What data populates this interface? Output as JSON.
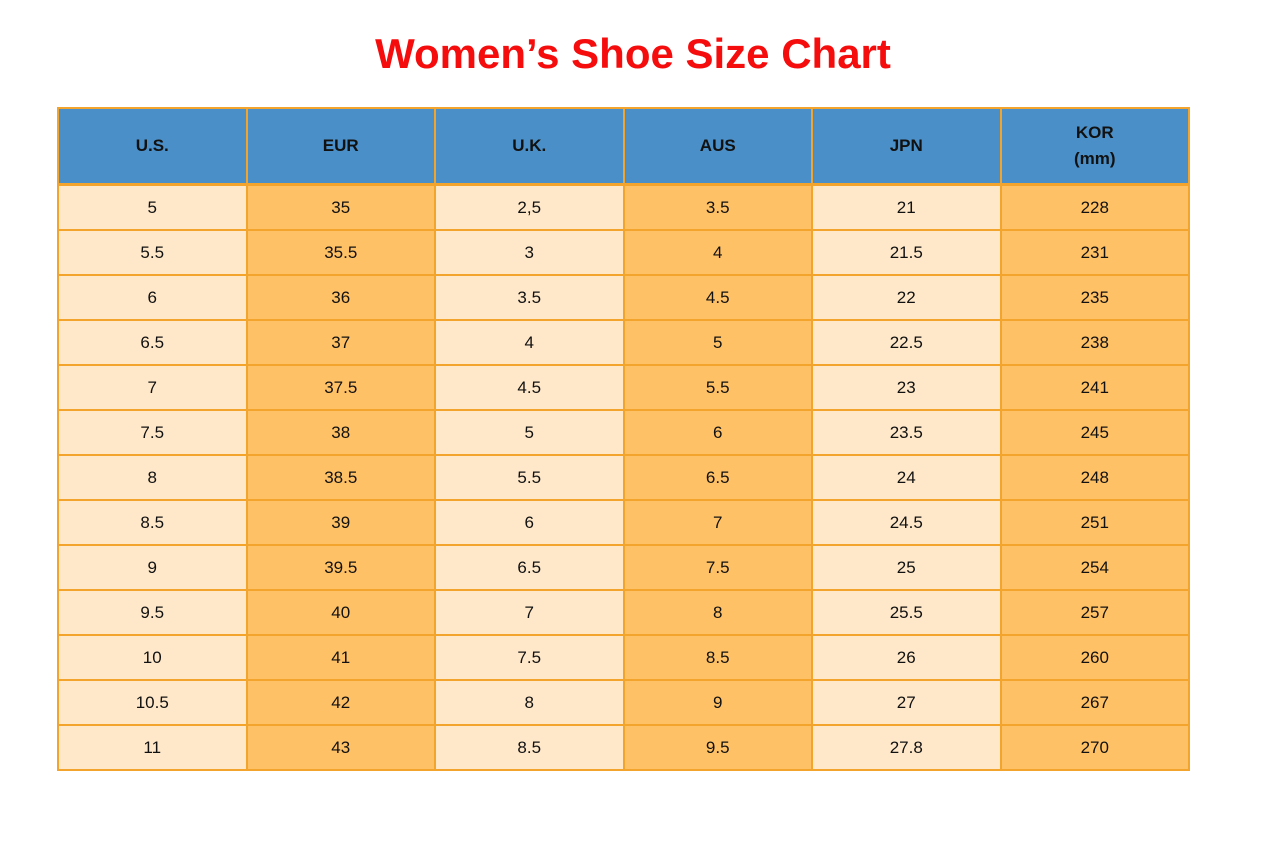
{
  "title": "Women’s Shoe Size Chart",
  "colors": {
    "title_red": "#f50d0d",
    "header_blue": "#4a8fc7",
    "cell_light": "#ffe8c9",
    "cell_orange": "#ffc166",
    "grid_border": "#f2a42c",
    "text": "#111111"
  },
  "table": {
    "headers": [
      {
        "line1": "U.S.",
        "line2": ""
      },
      {
        "line1": "EUR",
        "line2": ""
      },
      {
        "line1": "U.K.",
        "line2": ""
      },
      {
        "line1": "AUS",
        "line2": ""
      },
      {
        "line1": "JPN",
        "line2": ""
      },
      {
        "line1": "KOR",
        "line2": "(mm)"
      }
    ]
  },
  "chart_data": {
    "type": "table",
    "title": "Women’s Shoe Size Chart",
    "columns": [
      "U.S.",
      "EUR",
      "U.K.",
      "AUS",
      "JPN",
      "KOR (mm)"
    ],
    "rows": [
      [
        "5",
        "35",
        "2,5",
        "3.5",
        "21",
        "228"
      ],
      [
        "5.5",
        "35.5",
        "3",
        "4",
        "21.5",
        "231"
      ],
      [
        "6",
        "36",
        "3.5",
        "4.5",
        "22",
        "235"
      ],
      [
        "6.5",
        "37",
        "4",
        "5",
        "22.5",
        "238"
      ],
      [
        "7",
        "37.5",
        "4.5",
        "5.5",
        "23",
        "241"
      ],
      [
        "7.5",
        "38",
        "5",
        "6",
        "23.5",
        "245"
      ],
      [
        "8",
        "38.5",
        "5.5",
        "6.5",
        "24",
        "248"
      ],
      [
        "8.5",
        "39",
        "6",
        "7",
        "24.5",
        "251"
      ],
      [
        "9",
        "39.5",
        "6.5",
        "7.5",
        "25",
        "254"
      ],
      [
        "9.5",
        "40",
        "7",
        "8",
        "25.5",
        "257"
      ],
      [
        "10",
        "41",
        "7.5",
        "8.5",
        "26",
        "260"
      ],
      [
        "10.5",
        "42",
        "8",
        "9",
        "27",
        "267"
      ],
      [
        "11",
        "43",
        "8.5",
        "9.5",
        "27.8",
        "270"
      ]
    ],
    "layout": {
      "column_fill_pattern": [
        "light",
        "orange",
        "light",
        "orange",
        "light",
        "orange"
      ],
      "header_fill": "blue",
      "grid": true
    }
  }
}
